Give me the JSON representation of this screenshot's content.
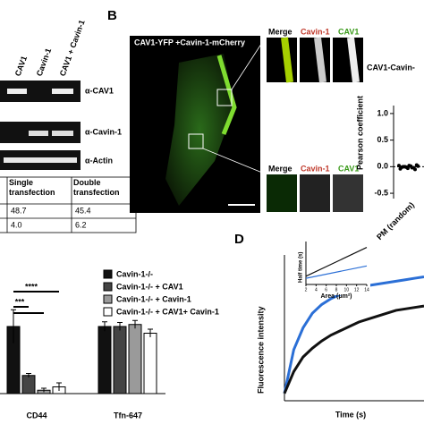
{
  "panel_a": {
    "lanes": [
      "CAV1",
      "Cavin-1",
      "CAV1 + Cavin-1"
    ],
    "blots": [
      "α-CAV1",
      "α-Cavin-1",
      "α-Actin"
    ],
    "table": {
      "header": [
        "Single transfection",
        "Double transfection"
      ],
      "rows": [
        [
          "48.7",
          "45.4"
        ],
        [
          "4.0",
          "6.2"
        ]
      ]
    }
  },
  "panel_b": {
    "label": "B",
    "image_title": "CAV1-YFP +Cavin-1-mCherry",
    "inset_labels_top": [
      "Merge",
      "Cavin-1",
      "CAV1"
    ],
    "inset_labels_bottom": [
      "Merge",
      "Cavin-1",
      "CAV1"
    ]
  },
  "panel_d": {
    "label": "D"
  },
  "chart_data": [
    {
      "type": "scatter",
      "title": "CAV1-Cavin-",
      "y_label": "Pearson coefficient",
      "categories": [
        "PM (random)"
      ],
      "values": [
        0.02,
        -0.01,
        0.0,
        -0.03,
        0.01,
        -0.02,
        0.03,
        -0.04,
        0.0,
        -0.01,
        0.02,
        -0.02,
        -0.05,
        0.01
      ],
      "color": "#000000",
      "ylim": [
        -0.6,
        1.15
      ],
      "yticks": [
        {
          "value": 1,
          "label": "1.0"
        },
        {
          "value": 0.5,
          "label": "0.5"
        },
        {
          "value": 0,
          "label": "0.0"
        },
        {
          "value": -0.5,
          "label": "-0.5"
        }
      ]
    },
    {
      "type": "bar",
      "categories": [
        "CD44",
        "Tfn-647"
      ],
      "ylim": [
        0,
        1.4
      ],
      "series": [
        {
          "name": "Cavin-1-/-",
          "color": "#111111",
          "values": [
            1.0,
            1.0
          ],
          "errors": [
            0.25,
            0.07
          ]
        },
        {
          "name": "Cavin-1-/- + CAV1",
          "color": "#444444",
          "values": [
            0.27,
            1.0
          ],
          "errors": [
            0.03,
            0.06
          ]
        },
        {
          "name": "Cavin-1-/- + Cavin-1",
          "color": "#9a9a9a",
          "values": [
            0.05,
            1.03
          ],
          "errors": [
            0.03,
            0.06
          ]
        },
        {
          "name": "Cavin-1-/- + CAV1+ Cavin-1",
          "color": "#ffffff",
          "values": [
            0.1,
            0.9
          ],
          "errors": [
            0.06,
            0.06
          ]
        }
      ],
      "annotations": [
        "****",
        "***"
      ]
    },
    {
      "type": "line",
      "x_label": "Time (s)",
      "y_label": "Fluorescence intensity",
      "xlim": [
        0,
        60
      ],
      "ylim": [
        0,
        1
      ],
      "x": [
        0,
        4,
        8,
        12,
        16,
        20,
        24,
        28,
        32,
        36,
        40,
        44,
        48,
        52,
        56,
        60
      ],
      "series": [
        {
          "color": "#2b6fd6",
          "values": [
            0.05,
            0.35,
            0.5,
            0.6,
            0.66,
            0.7,
            0.73,
            0.75,
            0.77,
            0.79,
            0.8,
            0.81,
            0.82,
            0.83,
            0.84,
            0.85
          ]
        },
        {
          "color": "#111111",
          "values": [
            0.05,
            0.2,
            0.3,
            0.36,
            0.41,
            0.45,
            0.48,
            0.51,
            0.54,
            0.56,
            0.58,
            0.6,
            0.62,
            0.63,
            0.64,
            0.65
          ]
        }
      ]
    },
    {
      "type": "line",
      "x_label": "Area (μm²)",
      "y_label": "Half time (s)",
      "xlim": [
        2,
        14
      ],
      "ylim": [
        0,
        10
      ],
      "xticks": [
        2,
        4,
        6,
        8,
        10,
        12,
        14
      ],
      "x": [
        2,
        14
      ],
      "series": [
        {
          "color": "#111111",
          "values": [
            2,
            9
          ]
        },
        {
          "color": "#2b6fd6",
          "values": [
            1.5,
            4.5
          ]
        }
      ]
    }
  ]
}
